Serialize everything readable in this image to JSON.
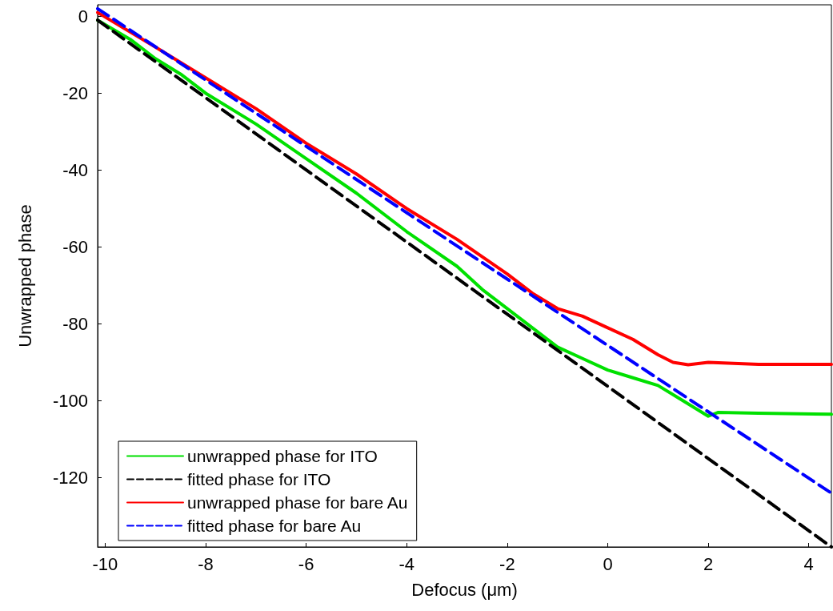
{
  "chart_data": {
    "type": "line",
    "xlabel": "Defocus (μm)",
    "ylabel": "Unwrapped phase",
    "xlim": [
      -10.15,
      4.45
    ],
    "ylim": [
      -138,
      3
    ],
    "xticks": [
      -10,
      -8,
      -6,
      -4,
      -2,
      0,
      2,
      4
    ],
    "yticks": [
      -120,
      -100,
      -80,
      -60,
      -40,
      -20,
      0
    ],
    "grid": false,
    "legend": "bottom left",
    "marker": "none",
    "series": [
      {
        "name": "unwrapped phase for ITO",
        "color": "#00e000",
        "line_style": "solid",
        "x": [
          -10.15,
          -9.5,
          -9,
          -8.5,
          -8,
          -7,
          -6,
          -5,
          -4,
          -3,
          -2.5,
          -2,
          -1.5,
          -1,
          -0.5,
          0,
          0.5,
          1,
          1.5,
          2,
          2.2,
          3,
          4.45
        ],
        "values": [
          -1,
          -6,
          -11,
          -15,
          -20,
          -28,
          -37,
          -46,
          -56,
          -65,
          -71,
          -76,
          -81,
          -86,
          -89,
          -92,
          -94,
          -96,
          -100,
          -104,
          -103,
          -103.2,
          -103.5
        ]
      },
      {
        "name": "fitted phase for ITO",
        "color": "#000000",
        "line_style": "dashed",
        "x": [
          -10.15,
          4.45
        ],
        "values": [
          -1,
          -138
        ]
      },
      {
        "name": "unwrapped phase for bare Au",
        "color": "#ff0000",
        "line_style": "solid",
        "x": [
          -10.15,
          -9,
          -8,
          -7,
          -6,
          -5,
          -4,
          -3,
          -2,
          -1.5,
          -1,
          -0.5,
          0,
          0.5,
          1,
          1.3,
          1.6,
          2,
          3,
          4.45
        ],
        "values": [
          1,
          -8,
          -16,
          -24,
          -33,
          -41,
          -50,
          -58,
          -67,
          -72,
          -76,
          -78,
          -81,
          -84,
          -88,
          -90,
          -90.6,
          -90,
          -90.5,
          -90.5
        ]
      },
      {
        "name": "fitted phase for bare Au",
        "color": "#0000ff",
        "line_style": "dashed",
        "x": [
          -10.15,
          4.45
        ],
        "values": [
          2,
          -124
        ]
      }
    ]
  }
}
